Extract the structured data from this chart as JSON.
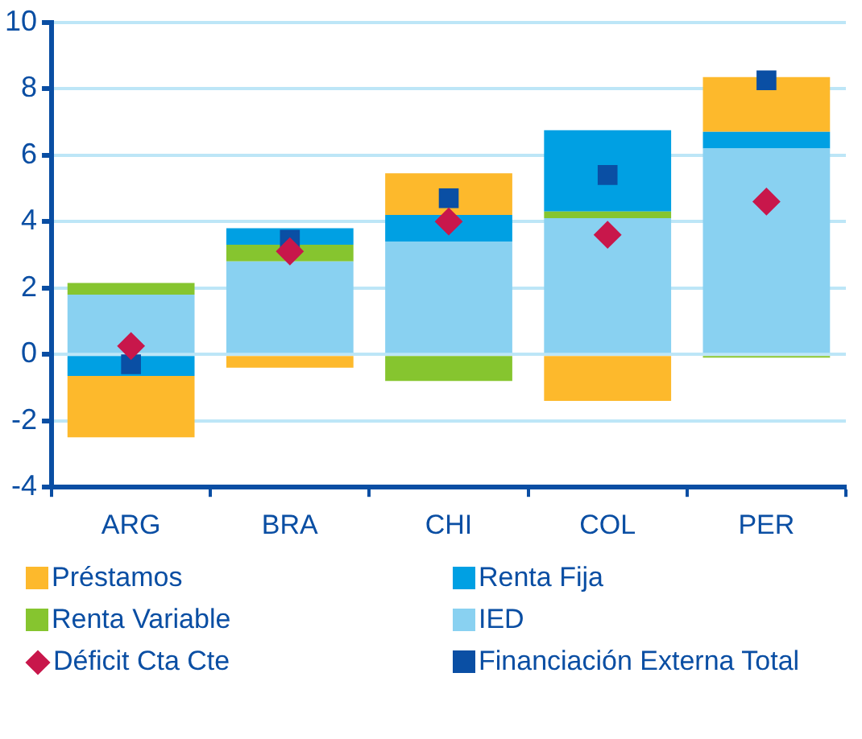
{
  "chart_data": {
    "type": "bar",
    "stacked": true,
    "categories": [
      "ARG",
      "BRA",
      "CHI",
      "COL",
      "PER"
    ],
    "series": [
      {
        "name": "IED",
        "color": "#89d1f1",
        "values": [
          1.8,
          2.8,
          3.4,
          4.1,
          6.2
        ]
      },
      {
        "name": "Renta Variable",
        "color": "#86c52f",
        "values": [
          0.35,
          0.5,
          -0.8,
          0.2,
          -0.1
        ]
      },
      {
        "name": "Renta Fija",
        "color": "#00a0e3",
        "values": [
          -0.65,
          0.5,
          0.8,
          2.45,
          0.5
        ]
      },
      {
        "name": "Préstamos",
        "color": "#fdb92c",
        "values": [
          -1.85,
          -0.4,
          1.25,
          -1.4,
          1.65
        ]
      },
      {
        "name": "Déficit Cta Cte",
        "type": "scatter",
        "marker": "diamond",
        "color": "#c8174b",
        "x": [
          "ARG",
          "BRA",
          "CHI",
          "COL",
          "PER"
        ],
        "values": [
          0.25,
          3.1,
          4.0,
          3.6,
          4.6
        ]
      },
      {
        "name": "Financiación Externa Total",
        "type": "scatter",
        "marker": "square",
        "color": "#0a4fa4",
        "x": [
          "ARG",
          "BRA",
          "CHI",
          "COL",
          "PER"
        ],
        "values": [
          -0.3,
          3.45,
          4.7,
          5.4,
          8.25
        ]
      }
    ],
    "ylim": [
      -4,
      10
    ],
    "yticks": [
      -4,
      -2,
      0,
      2,
      4,
      6,
      8,
      10
    ],
    "grid": "y",
    "legend": "bottom"
  }
}
